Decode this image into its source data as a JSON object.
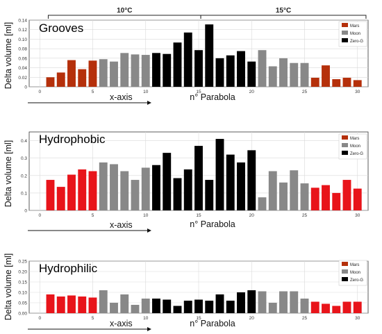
{
  "figure": {
    "brackets": [
      {
        "label": "10°C",
        "from": 0.8,
        "to": 15.2
      },
      {
        "label": "15°C",
        "from": 15.2,
        "to": 30.8
      }
    ],
    "pseudo_xlabel": "x-axis",
    "colors": {
      "Mars": "#b5300b",
      "Moon": "#888888",
      "Zero-G": "#000000",
      "red": "#e8141a",
      "pink": "#f030a0"
    }
  },
  "chart_data": [
    {
      "type": "bar",
      "title": "Grooves",
      "ylabel": "Delta volume [ml]",
      "xlabel": "n° Parabola",
      "ylim": [
        0,
        0.14
      ],
      "yticks": [
        "0",
        "0.02",
        "0.04",
        "0.06",
        "0.08",
        "0.10",
        "0.12",
        "0.14"
      ],
      "xlim": [
        -1,
        31
      ],
      "xticks": [
        "0",
        "5",
        "10",
        "15",
        "20",
        "25",
        "30"
      ],
      "legend": {
        "placement": "top-right",
        "entries": [
          "Mars",
          "Moon",
          "Zero-G"
        ]
      },
      "series": [
        {
          "name": "Mars",
          "x": [
            1,
            2,
            3,
            4,
            5,
            26,
            27,
            28,
            29,
            30
          ],
          "values": [
            0.02,
            0.03,
            0.056,
            0.037,
            0.055,
            0.019,
            0.045,
            0.016,
            0.019,
            0.014
          ]
        },
        {
          "name": "Moon",
          "x": [
            6,
            7,
            8,
            9,
            10,
            21,
            22,
            23,
            24,
            25
          ],
          "values": [
            0.058,
            0.053,
            0.071,
            0.068,
            0.067,
            0.077,
            0.043,
            0.06,
            0.05,
            0.05
          ]
        },
        {
          "name": "Zero-G",
          "x": [
            11,
            12,
            13,
            14,
            15,
            16,
            17,
            18,
            19,
            20
          ],
          "values": [
            0.071,
            0.069,
            0.093,
            0.114,
            0.077,
            0.131,
            0.06,
            0.066,
            0.075,
            0.053
          ]
        }
      ]
    },
    {
      "type": "bar",
      "title": "Hydrophobic",
      "ylabel": "Delta volume [ml]",
      "xlabel": "n° Parabola",
      "ylim": [
        0,
        0.45
      ],
      "yticks": [
        "0",
        "0.1",
        "0.2",
        "0.3",
        "0.4"
      ],
      "xlim": [
        -1,
        31
      ],
      "xticks": [
        "0",
        "5",
        "10",
        "15",
        "20",
        "25",
        "30"
      ],
      "legend": {
        "placement": "top-right",
        "entries": [
          "Mars",
          "Moon",
          "Zero-G"
        ]
      },
      "series": [
        {
          "name": "Mars",
          "x": [
            1,
            2,
            3,
            4,
            5,
            26,
            27,
            28,
            29,
            30
          ],
          "values": [
            0.175,
            0.135,
            0.205,
            0.235,
            0.225,
            0.13,
            0.145,
            0.1,
            0.175,
            0.125
          ]
        },
        {
          "name": "Moon",
          "x": [
            6,
            7,
            8,
            9,
            10,
            21,
            22,
            23,
            24,
            25
          ],
          "values": [
            0.275,
            0.265,
            0.225,
            0.175,
            0.245,
            0.075,
            0.225,
            0.16,
            0.23,
            0.155
          ]
        },
        {
          "name": "Zero-G",
          "x": [
            11,
            12,
            13,
            14,
            15,
            16,
            17,
            18,
            19,
            20
          ],
          "values": [
            0.26,
            0.33,
            0.185,
            0.235,
            0.37,
            0.175,
            0.41,
            0.32,
            0.275,
            0.345
          ]
        }
      ]
    },
    {
      "type": "bar",
      "title": "Hydrophilic",
      "ylabel": "Delta volume [ml]",
      "xlabel": "n° Parabola",
      "ylim": [
        0,
        0.25
      ],
      "yticks": [
        "0.00",
        "0.05",
        "0.10",
        "0.15",
        "0.20",
        "0.25"
      ],
      "xlim": [
        -1,
        31
      ],
      "xticks": [
        "0",
        "5",
        "10",
        "15",
        "20",
        "25",
        "30"
      ],
      "legend": {
        "placement": "top-right",
        "entries": [
          "Mars",
          "Moon",
          "Zero-G"
        ]
      },
      "series": [
        {
          "name": "Mars",
          "x": [
            1,
            2,
            3,
            4,
            5,
            26,
            27,
            28,
            29,
            30
          ],
          "values": [
            0.09,
            0.08,
            0.085,
            0.08,
            0.075,
            0.055,
            0.045,
            0.035,
            0.055,
            0.055
          ]
        },
        {
          "name": "Moon",
          "x": [
            6,
            7,
            8,
            9,
            10,
            21,
            22,
            23,
            24,
            25
          ],
          "values": [
            0.11,
            0.05,
            0.09,
            0.04,
            0.07,
            0.105,
            0.05,
            0.105,
            0.105,
            0.07
          ]
        },
        {
          "name": "Zero-G",
          "x": [
            11,
            12,
            13,
            14,
            15,
            16,
            17,
            18,
            19,
            20
          ],
          "values": [
            0.07,
            0.065,
            0.035,
            0.06,
            0.065,
            0.06,
            0.09,
            0.06,
            0.1,
            0.11
          ]
        }
      ]
    }
  ]
}
